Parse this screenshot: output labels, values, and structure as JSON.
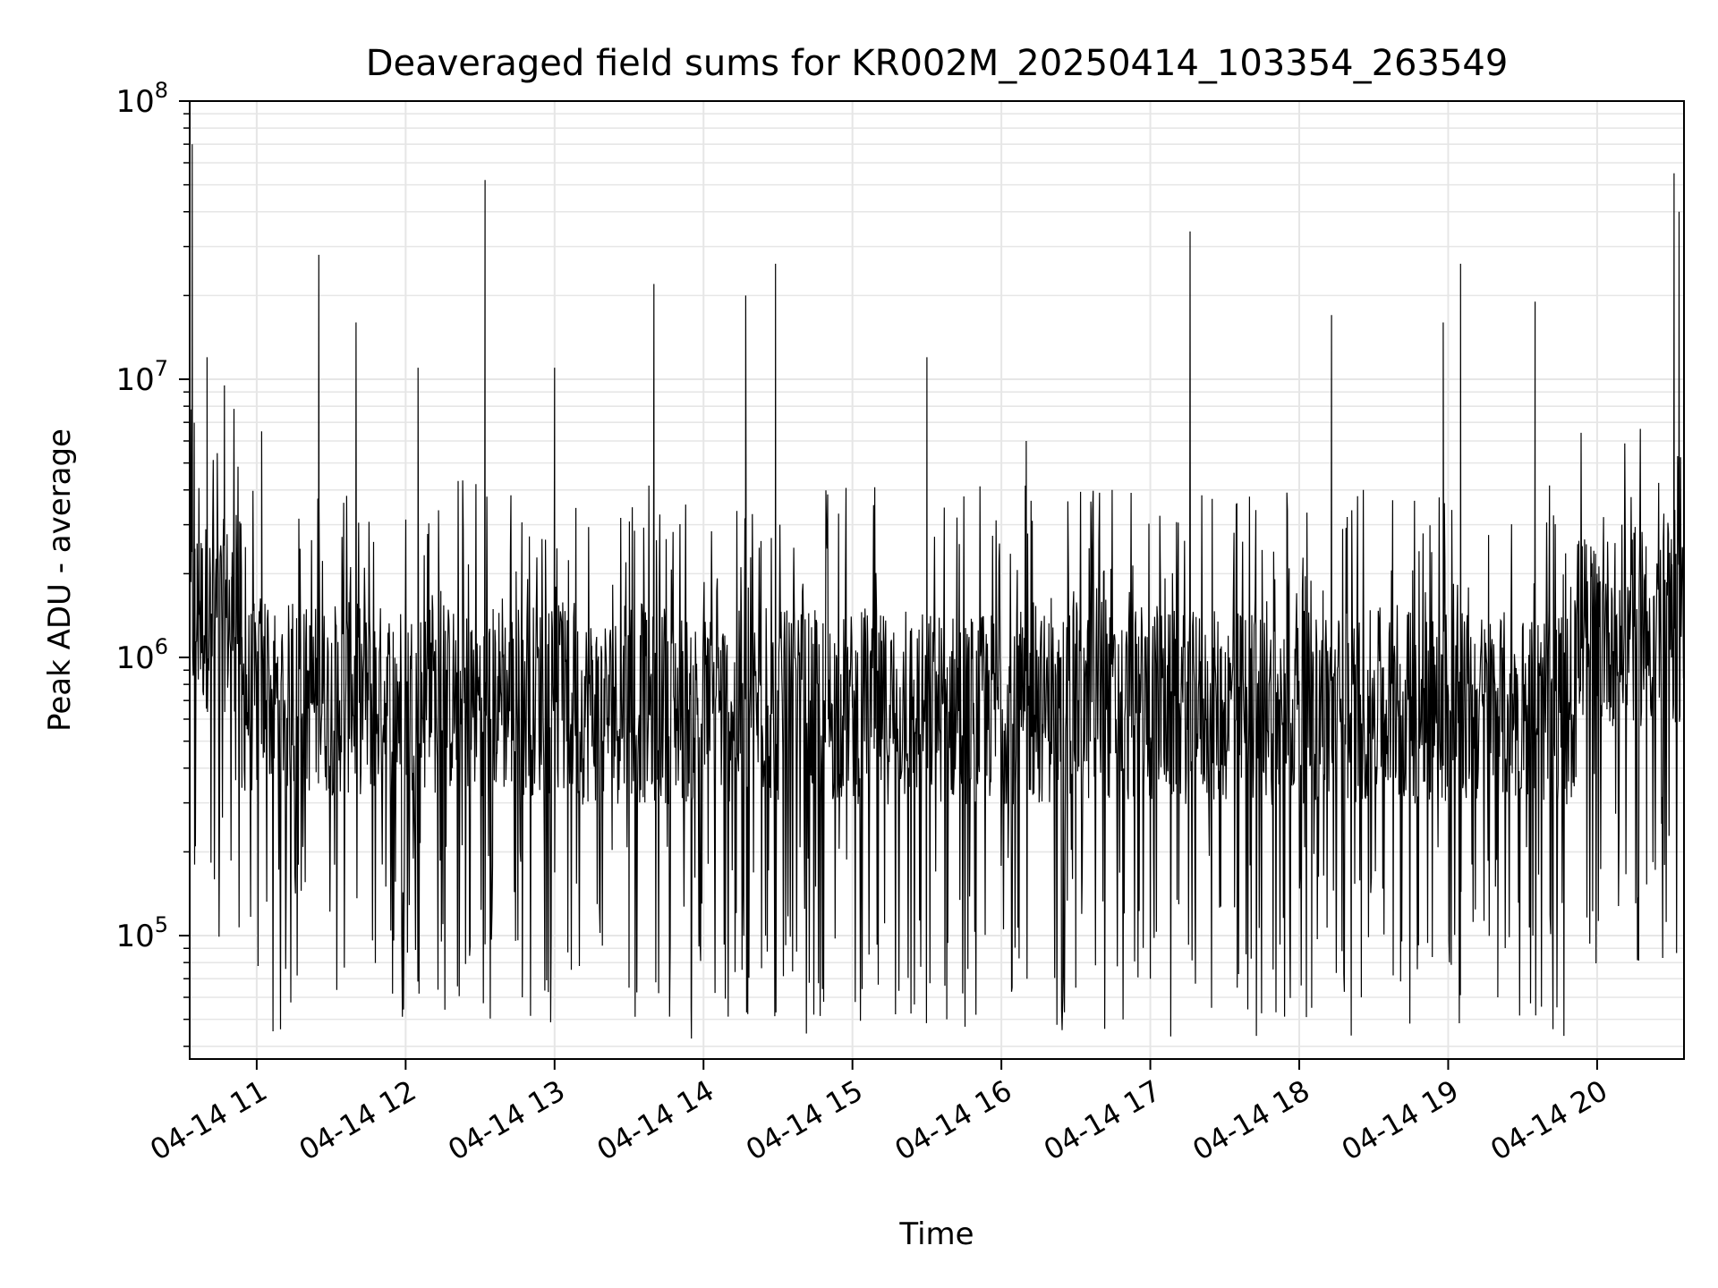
{
  "chart_data": {
    "type": "line",
    "title": "Deaveraged field sums for KR002M_20250414_103354_263549",
    "xlabel": "Time",
    "ylabel": "Peak ADU - average",
    "yscale": "log",
    "ylim": [
      36000,
      100000000
    ],
    "xlim": [
      "2025-04-14 10:33",
      "2025-04-14 20:35"
    ],
    "grid": true,
    "line_color": "#000000",
    "grid_color": "#e6e6e6",
    "x_ticks": [
      {
        "t": "2025-04-14 11:00",
        "label": "04-14 11"
      },
      {
        "t": "2025-04-14 12:00",
        "label": "04-14 12"
      },
      {
        "t": "2025-04-14 13:00",
        "label": "04-14 13"
      },
      {
        "t": "2025-04-14 14:00",
        "label": "04-14 14"
      },
      {
        "t": "2025-04-14 15:00",
        "label": "04-14 15"
      },
      {
        "t": "2025-04-14 16:00",
        "label": "04-14 16"
      },
      {
        "t": "2025-04-14 17:00",
        "label": "04-14 17"
      },
      {
        "t": "2025-04-14 18:00",
        "label": "04-14 18"
      },
      {
        "t": "2025-04-14 19:00",
        "label": "04-14 19"
      },
      {
        "t": "2025-04-14 20:00",
        "label": "04-14 20"
      }
    ],
    "y_ticks": [
      {
        "value": 100000,
        "base": "10",
        "exp": "5"
      },
      {
        "value": 1000000,
        "base": "10",
        "exp": "6"
      },
      {
        "value": 10000000,
        "base": "10",
        "exp": "7"
      },
      {
        "value": 100000000,
        "base": "10",
        "exp": "8"
      }
    ],
    "series": [
      {
        "x": [
          "2025-04-14 10:33",
          "2025-04-14 10:34",
          "2025-04-14 10:35",
          "2025-04-14 10:36",
          "2025-04-14 10:37",
          "2025-04-14 10:40",
          "2025-04-14 10:44",
          "2025-04-14 10:47",
          "2025-04-14 10:50",
          "2025-04-14 10:54",
          "2025-04-14 11:02",
          "2025-04-14 11:10",
          "2025-04-14 11:15",
          "2025-04-14 11:25",
          "2025-04-14 11:40",
          "2025-04-14 11:52",
          "2025-04-14 12:05",
          "2025-04-14 12:15",
          "2025-04-14 12:32",
          "2025-04-14 12:40",
          "2025-04-14 12:47",
          "2025-04-14 13:00",
          "2025-04-14 13:15",
          "2025-04-14 13:30",
          "2025-04-14 13:40",
          "2025-04-14 13:55",
          "2025-04-14 14:17",
          "2025-04-14 14:25",
          "2025-04-14 14:29",
          "2025-04-14 14:43",
          "2025-04-14 15:00",
          "2025-04-14 15:30",
          "2025-04-14 15:38",
          "2025-04-14 15:55",
          "2025-04-14 16:10",
          "2025-04-14 16:30",
          "2025-04-14 16:45",
          "2025-04-14 17:00",
          "2025-04-14 17:16",
          "2025-04-14 17:35",
          "2025-04-14 17:55",
          "2025-04-14 18:05",
          "2025-04-14 18:13",
          "2025-04-14 18:25",
          "2025-04-14 18:40",
          "2025-04-14 18:58",
          "2025-04-14 19:05",
          "2025-04-14 19:20",
          "2025-04-14 19:35",
          "2025-04-14 19:45",
          "2025-04-14 20:00",
          "2025-04-14 20:10",
          "2025-04-14 20:20",
          "2025-04-14 20:30",
          "2025-04-14 20:31",
          "2025-04-14 20:33",
          "2025-04-14 20:35"
        ],
        "y": [
          65000000,
          70000000,
          180000,
          1500000,
          1600000,
          12000000,
          1400000,
          9500000,
          1800000,
          340000,
          6500000,
          900000,
          400000,
          28000000,
          16000000,
          150000,
          11000000,
          110000,
          52000000,
          1000000,
          60000,
          11000000,
          1100000,
          65000,
          22000000,
          55000,
          20000000,
          100000,
          26000000,
          700000,
          800000,
          12000000,
          50000,
          900000,
          6000000,
          65000,
          1000000,
          70000,
          34000000,
          65000,
          900000,
          55000,
          17000000,
          60000,
          700000,
          16000000,
          26000000,
          60000,
          19000000,
          1200000,
          2000000,
          3000000,
          1200000,
          1000000,
          55000000,
          40000000,
          850000
        ]
      }
    ]
  }
}
